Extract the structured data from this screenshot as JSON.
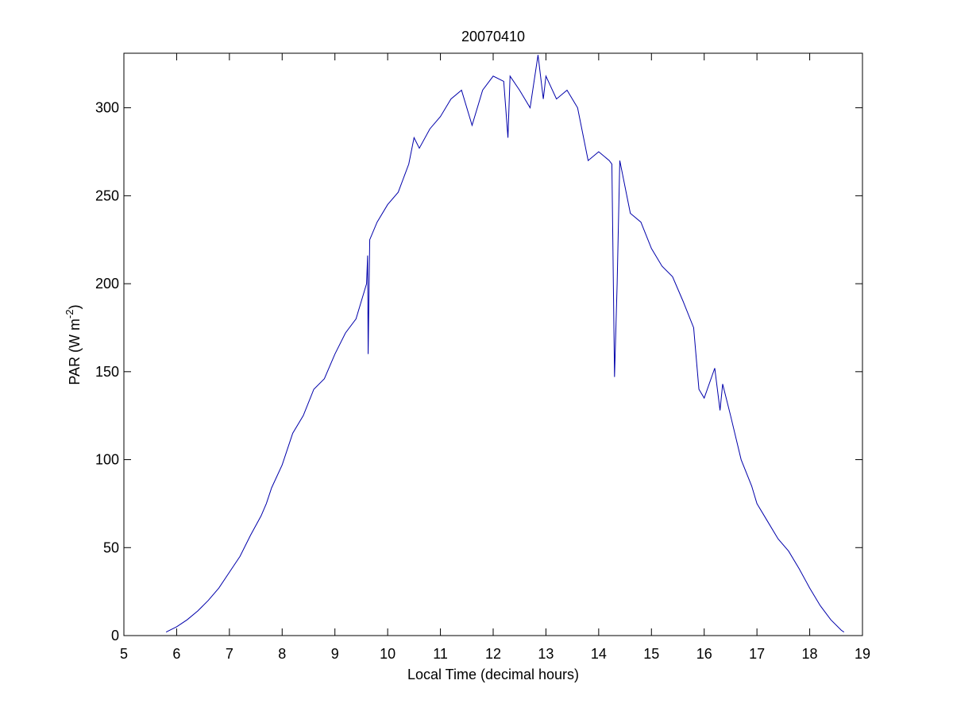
{
  "chart_data": {
    "type": "line",
    "title": "20070410",
    "xlabel": "Local Time (decimal hours)",
    "ylabel": [
      "PAR (W m",
      "-2",
      ")"
    ],
    "series": [
      {
        "color": "#0000aa",
        "x": [
          5.8,
          6.0,
          6.2,
          6.4,
          6.6,
          6.8,
          7.0,
          7.2,
          7.4,
          7.6,
          7.7,
          7.8,
          8.0,
          8.2,
          8.4,
          8.6,
          8.8,
          9.0,
          9.2,
          9.4,
          9.6,
          9.62,
          9.63,
          9.66,
          9.8,
          10.0,
          10.2,
          10.4,
          10.5,
          10.6,
          10.8,
          11.0,
          11.2,
          11.4,
          11.6,
          11.8,
          12.0,
          12.2,
          12.28,
          12.32,
          12.5,
          12.7,
          12.85,
          12.95,
          13.0,
          13.2,
          13.4,
          13.6,
          13.8,
          14.0,
          14.2,
          14.25,
          14.3,
          14.35,
          14.4,
          14.6,
          14.8,
          15.0,
          15.2,
          15.4,
          15.6,
          15.8,
          15.9,
          16.0,
          16.2,
          16.3,
          16.35,
          16.5,
          16.7,
          16.9,
          17.0,
          17.2,
          17.4,
          17.6,
          17.8,
          18.0,
          18.2,
          18.4,
          18.6,
          18.65
        ],
        "values": [
          2,
          5,
          9,
          14,
          20,
          27,
          36,
          45,
          57,
          68,
          75,
          84,
          97,
          115,
          125,
          140,
          146,
          160,
          172,
          180,
          200,
          216,
          160,
          225,
          235,
          245,
          252,
          268,
          283,
          277,
          288,
          295,
          305,
          310,
          290,
          310,
          318,
          315,
          283,
          318,
          310,
          300,
          330,
          305,
          318,
          305,
          310,
          300,
          270,
          275,
          270,
          268,
          147,
          200,
          270,
          240,
          235,
          220,
          210,
          204,
          190,
          175,
          140,
          135,
          152,
          128,
          143,
          125,
          100,
          85,
          75,
          65,
          55,
          48,
          38,
          27,
          17,
          9,
          3,
          2
        ]
      }
    ],
    "xlim": [
      5,
      19
    ],
    "xticks": [
      5,
      6,
      7,
      8,
      9,
      10,
      11,
      12,
      13,
      14,
      15,
      16,
      17,
      18,
      19
    ],
    "ylim": [
      0,
      331
    ],
    "yticks": [
      0,
      50,
      100,
      150,
      200,
      250,
      300
    ]
  }
}
